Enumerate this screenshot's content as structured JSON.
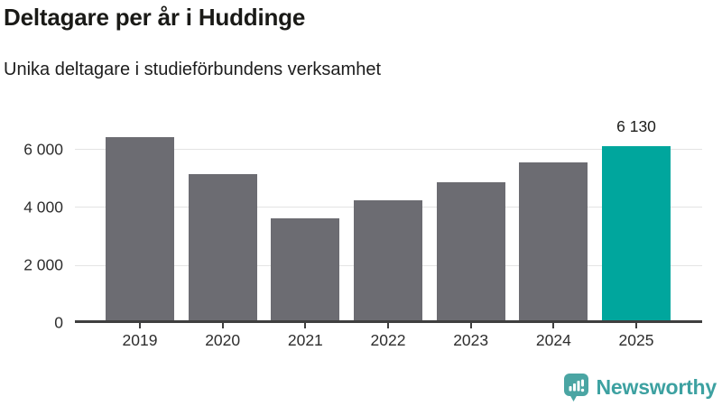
{
  "header": {
    "title": "Deltagare per år i Huddinge",
    "subtitle": "Unika deltagare i studieförbundens verksamhet"
  },
  "chart_data": {
    "type": "bar",
    "title": "Deltagare per år i Huddinge",
    "subtitle": "Unika deltagare i studieförbundens verksamhet",
    "categories": [
      "2019",
      "2020",
      "2021",
      "2022",
      "2023",
      "2024",
      "2025"
    ],
    "values": [
      6430,
      5170,
      3640,
      4250,
      4860,
      5560,
      6130
    ],
    "highlighted_category": "2025",
    "data_label": {
      "category": "2025",
      "text": "6 130"
    },
    "yticks": [
      0,
      2000,
      4000,
      6000
    ],
    "ytick_labels": [
      "0",
      "2 000",
      "4 000",
      "6 000"
    ],
    "ylim": [
      0,
      7280
    ],
    "xlabel": "",
    "ylabel": "",
    "grid": "horizontal",
    "legend": "none",
    "colors": {
      "bar": "#6c6c72",
      "highlight": "#00a69d",
      "gridline": "#e4e4e4",
      "axis": "#3f3f3f",
      "tick_label": "#2e2e2e",
      "data_label": "#1d1d1b"
    }
  },
  "branding": {
    "name": "Newsworthy",
    "icon": "newsworthy-bar-chart-bubble-icon",
    "icon_color": "#4aa5a3",
    "text_color": "#3da1a1"
  }
}
